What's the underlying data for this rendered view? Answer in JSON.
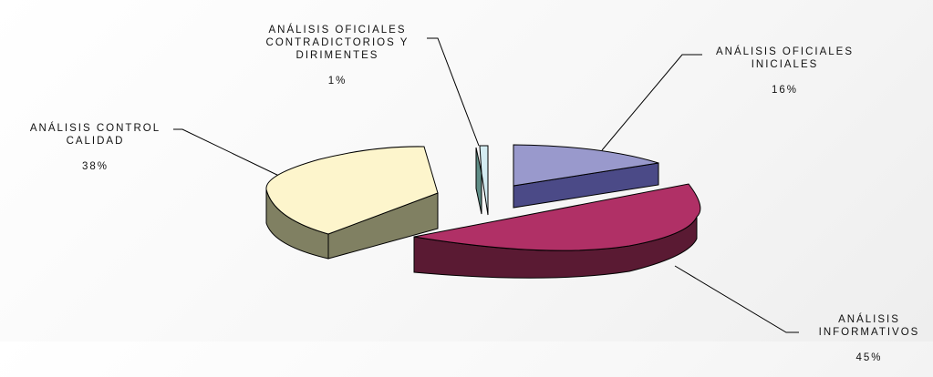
{
  "chart_data": {
    "type": "pie",
    "title": "",
    "legend": "none",
    "slices": [
      {
        "label": "ANÁLISIS OFICIALES\nINICIALES",
        "percent": "16%",
        "value": 16,
        "top_color": "#9999cc",
        "side_color": "#4b4a87"
      },
      {
        "label": "ANÁLISIS\nINFORMATIVOS",
        "percent": "45%",
        "value": 45,
        "top_color": "#b03066",
        "side_color": "#5a1a33"
      },
      {
        "label": "ANÁLISIS CONTROL\nCALIDAD",
        "percent": "38%",
        "value": 38,
        "top_color": "#fdf5cc",
        "side_color": "#808062"
      },
      {
        "label": "ANÁLISIS OFICIALES\nCONTRADICTORIOS Y\nDIRIMENTES",
        "percent": "1%",
        "value": 1,
        "top_color": "#d4ecf2",
        "side_color": "#5f8d86"
      }
    ]
  }
}
